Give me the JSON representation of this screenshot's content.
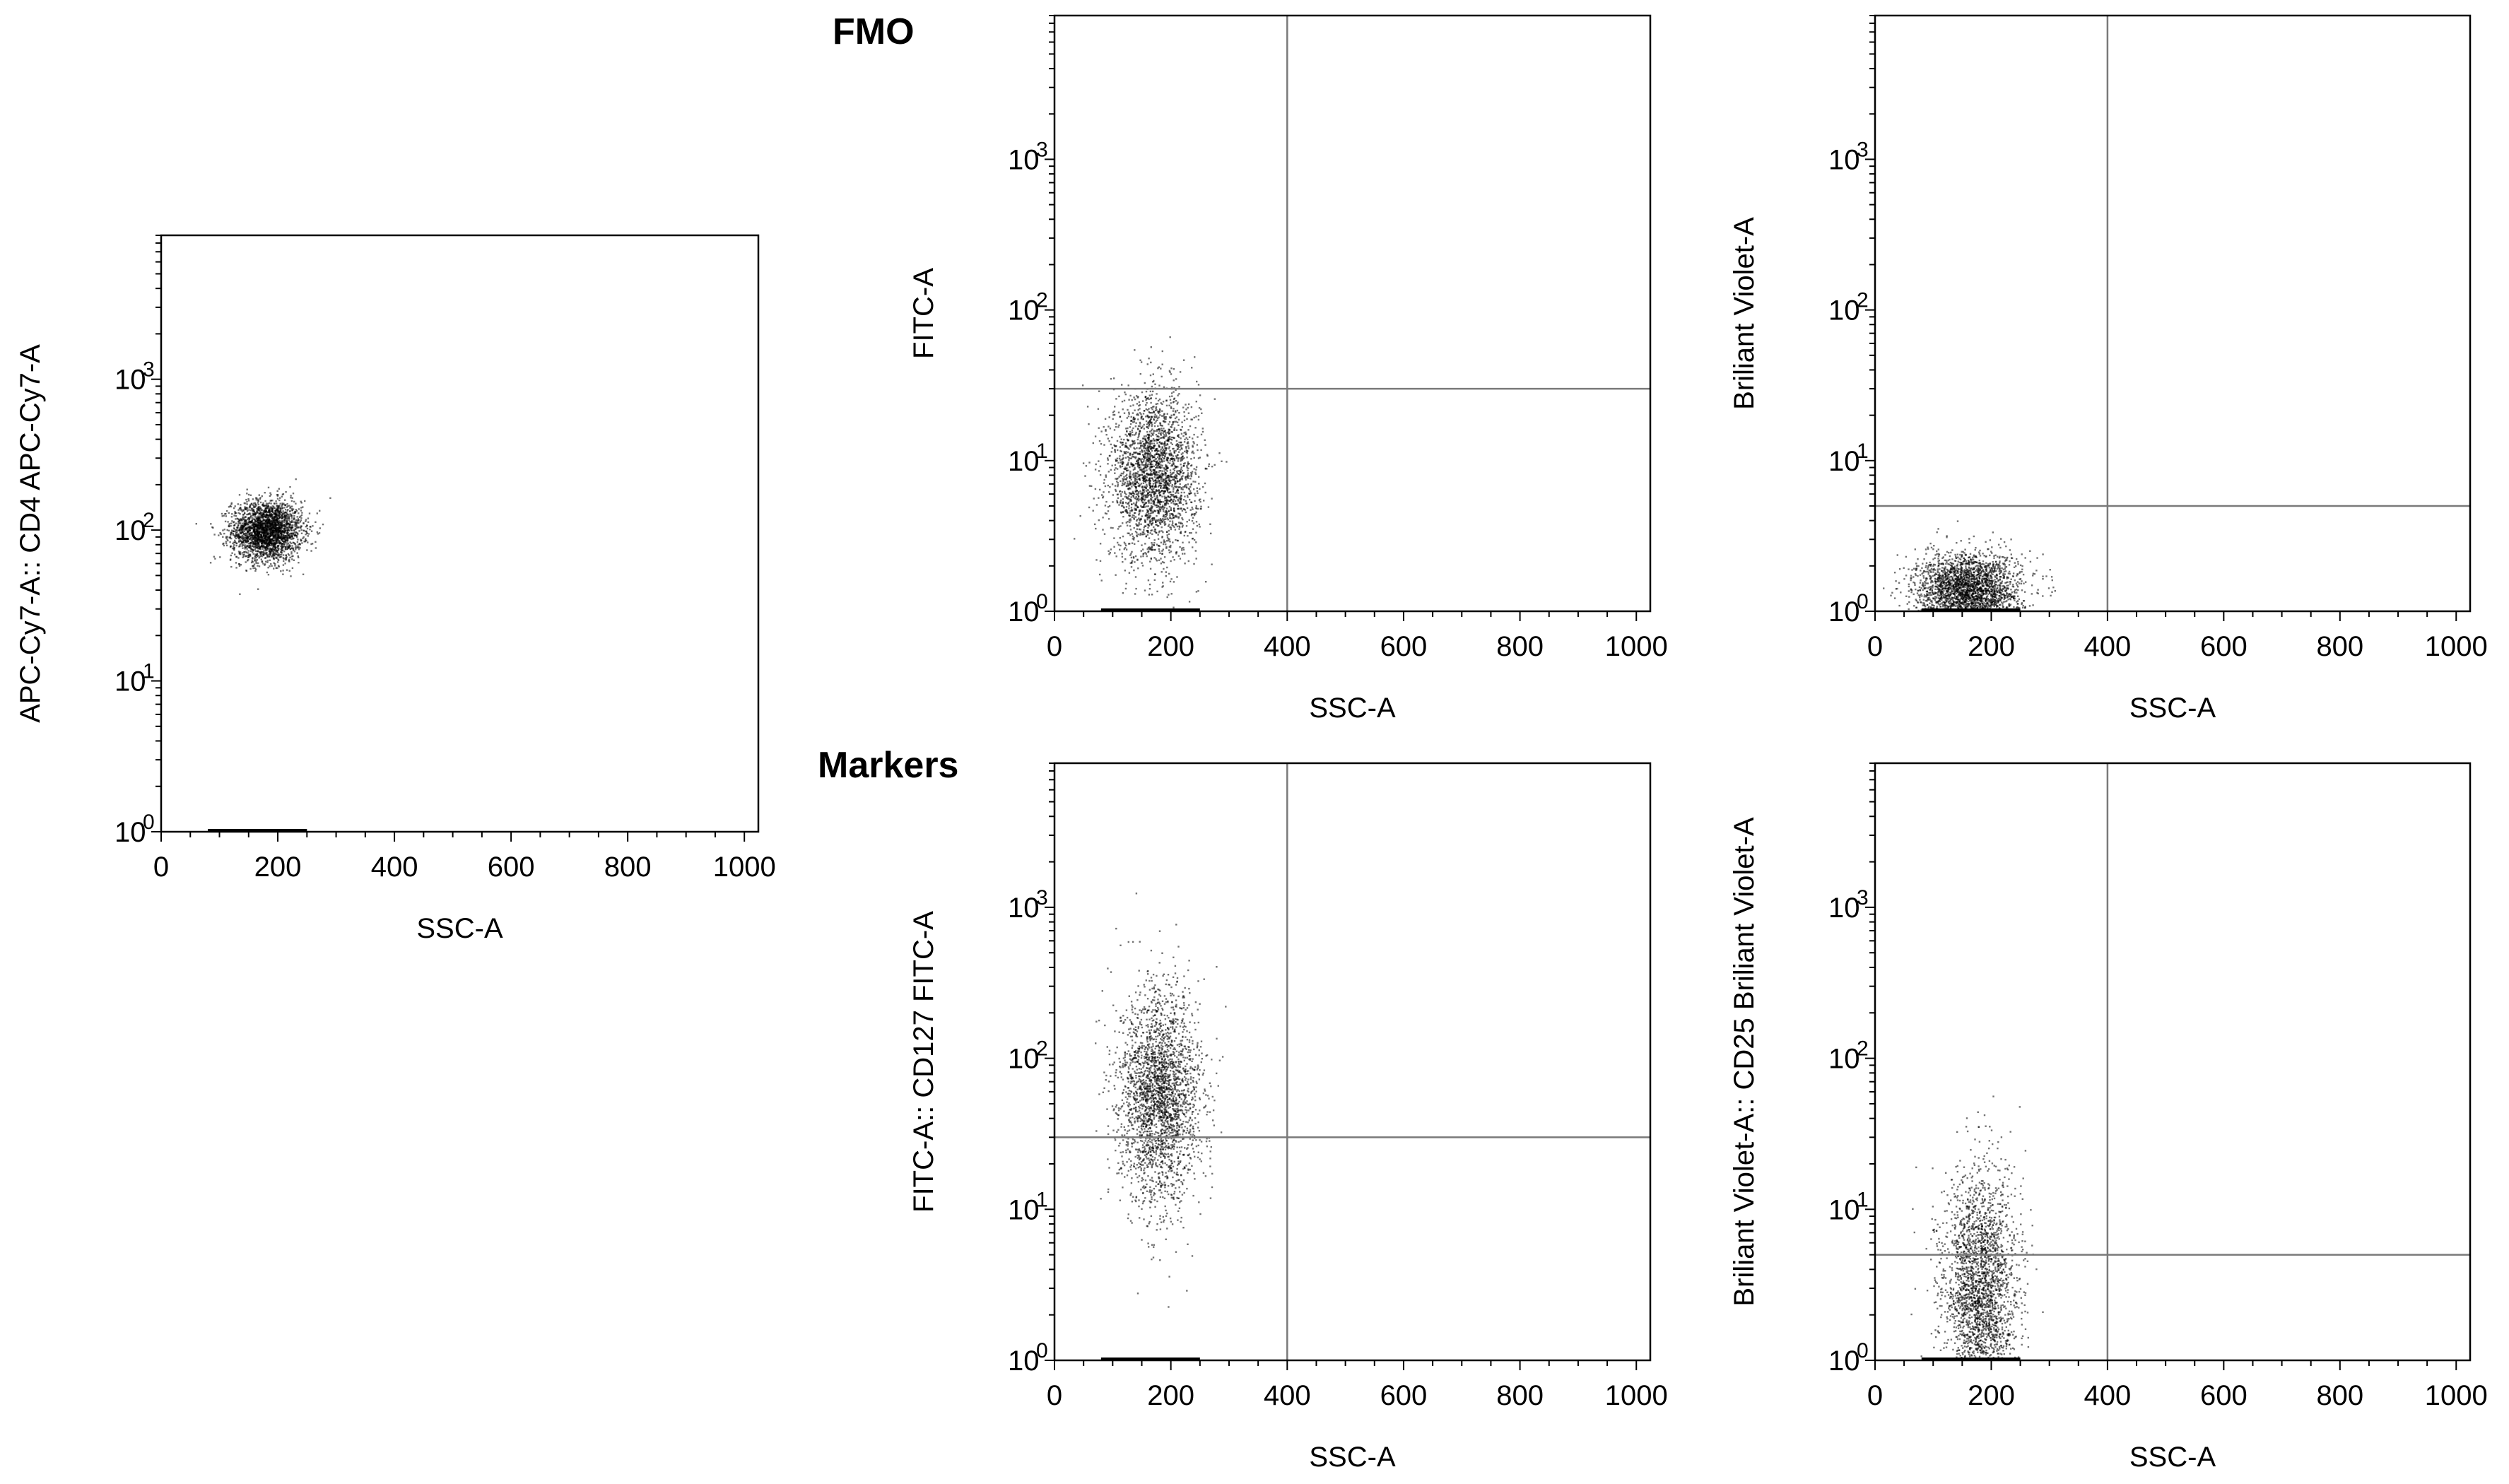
{
  "section_labels": {
    "fmo": "FMO",
    "markers": "Markers"
  },
  "chart_data": [
    {
      "id": "cd4-gate",
      "type": "scatter",
      "xlabel": "SSC-A",
      "ylabel": "APC-Cy7-A:: CD4 APC-Cy7-A",
      "xlim": [
        0,
        1024
      ],
      "ylim": [
        1,
        9000
      ],
      "y_scale": "log",
      "x_ticks": [
        "0",
        "200",
        "400",
        "600",
        "800",
        "1000"
      ],
      "y_ticks": [
        {
          "base": "10",
          "exp": "0"
        },
        {
          "base": "10",
          "exp": "1"
        },
        {
          "base": "10",
          "exp": "2"
        },
        {
          "base": "10",
          "exp": "3"
        }
      ],
      "point_color": "#000000",
      "populations": [
        {
          "x_center": 180,
          "x_sd": 30,
          "y_center_log10": 2.0,
          "y_sd_log10": 0.1,
          "share": 1.0
        }
      ],
      "gate": null
    },
    {
      "id": "fmo-fitc",
      "type": "scatter",
      "xlabel": "SSC-A",
      "ylabel": "FITC-A",
      "xlim": [
        0,
        1024
      ],
      "ylim": [
        1,
        9000
      ],
      "y_scale": "log",
      "x_ticks": [
        "0",
        "200",
        "400",
        "600",
        "800",
        "1000"
      ],
      "y_ticks": [
        {
          "base": "10",
          "exp": "0"
        },
        {
          "base": "10",
          "exp": "1"
        },
        {
          "base": "10",
          "exp": "2"
        },
        {
          "base": "10",
          "exp": "3"
        }
      ],
      "point_color": "#000000",
      "populations": [
        {
          "x_center": 170,
          "x_sd": 38,
          "y_center_log10": 0.9,
          "y_sd_log10": 0.28,
          "share": 1.0
        }
      ],
      "gate": {
        "x": 400,
        "y": 30
      }
    },
    {
      "id": "fmo-bv",
      "type": "scatter",
      "xlabel": "SSC-A",
      "ylabel": "Briliant Violet-A",
      "xlim": [
        0,
        1024
      ],
      "ylim": [
        1,
        9000
      ],
      "y_scale": "log",
      "x_ticks": [
        "0",
        "200",
        "400",
        "600",
        "800",
        "1000"
      ],
      "y_ticks": [
        {
          "base": "10",
          "exp": "0"
        },
        {
          "base": "10",
          "exp": "1"
        },
        {
          "base": "10",
          "exp": "2"
        },
        {
          "base": "10",
          "exp": "3"
        }
      ],
      "point_color": "#000000",
      "populations": [
        {
          "x_center": 160,
          "x_sd": 45,
          "y_center_log10": 0.15,
          "y_sd_log10": 0.12,
          "share": 1.0
        }
      ],
      "gate": {
        "x": 400,
        "y": 5
      }
    },
    {
      "id": "markers-cd127",
      "type": "scatter",
      "xlabel": "SSC-A",
      "ylabel": "FITC-A:: CD127 FITC-A",
      "xlim": [
        0,
        1024
      ],
      "ylim": [
        1,
        9000
      ],
      "y_scale": "log",
      "x_ticks": [
        "0",
        "200",
        "400",
        "600",
        "800",
        "1000"
      ],
      "y_ticks": [
        {
          "base": "10",
          "exp": "0"
        },
        {
          "base": "10",
          "exp": "1"
        },
        {
          "base": "10",
          "exp": "2"
        },
        {
          "base": "10",
          "exp": "3"
        }
      ],
      "point_color": "#000000",
      "populations": [
        {
          "x_center": 180,
          "x_sd": 35,
          "y_center_log10": 1.75,
          "y_sd_log10": 0.35,
          "share": 1.0
        }
      ],
      "gate": {
        "x": 400,
        "y": 30
      }
    },
    {
      "id": "markers-cd25",
      "type": "scatter",
      "xlabel": "SSC-A",
      "ylabel": "Briliant Violet-A:: CD25 Briliant Violet-A",
      "xlim": [
        0,
        1024
      ],
      "ylim": [
        1,
        9000
      ],
      "y_scale": "log",
      "x_ticks": [
        "0",
        "200",
        "400",
        "600",
        "800",
        "1000"
      ],
      "y_ticks": [
        {
          "base": "10",
          "exp": "0"
        },
        {
          "base": "10",
          "exp": "1"
        },
        {
          "base": "10",
          "exp": "2"
        },
        {
          "base": "10",
          "exp": "3"
        }
      ],
      "point_color": "#000000",
      "populations": [
        {
          "x_center": 180,
          "x_sd": 32,
          "y_center_log10": 0.45,
          "y_sd_log10": 0.4,
          "share": 1.0
        }
      ],
      "gate": {
        "x": 400,
        "y": 5
      }
    }
  ]
}
